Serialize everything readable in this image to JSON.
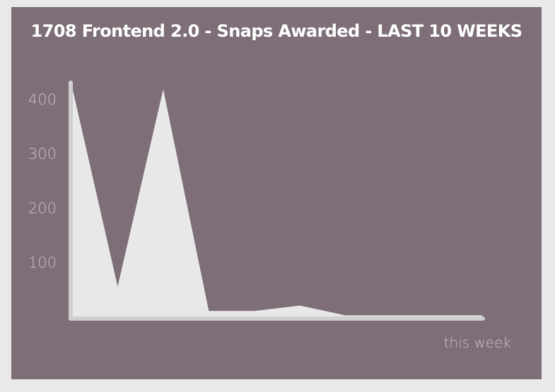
{
  "chart_data": {
    "type": "area",
    "title": "1708 Frontend 2.0 - Snaps Awarded - LAST 10 WEEKS",
    "xlabel": "this week",
    "ylabel": "",
    "y_ticks": [
      100,
      200,
      300,
      400
    ],
    "ylim": [
      0,
      430
    ],
    "x": [
      1,
      2,
      3,
      4,
      5,
      6,
      7,
      8,
      9,
      10
    ],
    "values": [
      422,
      55,
      418,
      10,
      10,
      20,
      2,
      2,
      2,
      2
    ],
    "grid": false,
    "colors": {
      "background": "#7e6e78",
      "area": "#e8e8e8",
      "axis": "#cfcfcf",
      "text": "#c9bfc5"
    }
  }
}
